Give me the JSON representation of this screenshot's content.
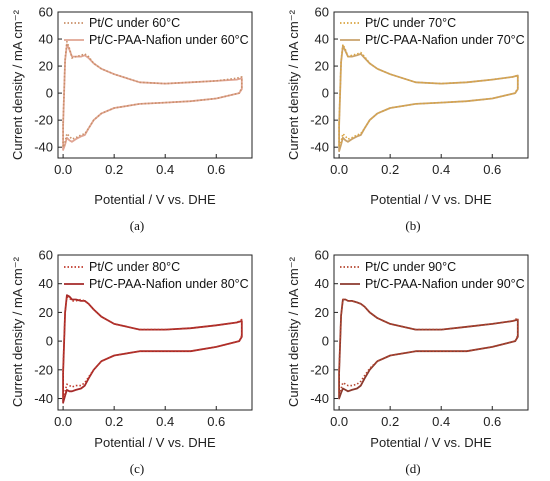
{
  "chart_data": [
    {
      "panel": "(a)",
      "type": "line",
      "xlabel": "Potential / V vs. DHE",
      "ylabel": "Current density / mA cm⁻²",
      "xlim": [
        -0.02,
        0.74
      ],
      "ylim": [
        -48,
        60
      ],
      "xticks": [
        "0.0",
        "0.2",
        "0.4",
        "0.6"
      ],
      "xtick_values": [
        0.0,
        0.2,
        0.4,
        0.6
      ],
      "yticks": [
        "-40",
        "-20",
        "0",
        "20",
        "40",
        "60"
      ],
      "ytick_values": [
        -40,
        -20,
        0,
        20,
        40,
        60
      ],
      "legend_position": "top-left",
      "series": [
        {
          "name": "Pt/C under 60°C",
          "style": "dotted",
          "color": "#c98f67",
          "x": [
            0.0,
            0.008,
            0.015,
            0.025,
            0.035,
            0.05,
            0.07,
            0.085,
            0.1,
            0.12,
            0.15,
            0.2,
            0.3,
            0.4,
            0.5,
            0.6,
            0.68,
            0.7,
            0.7,
            0.69,
            0.6,
            0.5,
            0.4,
            0.3,
            0.2,
            0.15,
            0.12,
            0.1,
            0.085,
            0.07,
            0.05,
            0.035,
            0.025,
            0.015,
            0.008,
            0.0,
            0.0
          ],
          "y": [
            -22,
            25,
            38,
            33,
            26,
            27,
            28,
            29,
            27,
            22,
            18,
            14,
            8,
            7,
            8,
            9,
            11,
            12,
            4,
            0,
            -4,
            -6,
            -7,
            -8,
            -11,
            -15,
            -20,
            -26,
            -30,
            -31,
            -33,
            -34,
            -32,
            -30,
            -36,
            -40,
            -22
          ]
        },
        {
          "name": "Pt/C-PAA-Nafion under 60°C",
          "style": "solid",
          "color": "#e0a493",
          "x": [
            0.0,
            0.008,
            0.015,
            0.025,
            0.035,
            0.05,
            0.07,
            0.085,
            0.1,
            0.12,
            0.15,
            0.2,
            0.3,
            0.4,
            0.5,
            0.6,
            0.68,
            0.7,
            0.7,
            0.69,
            0.6,
            0.5,
            0.4,
            0.3,
            0.2,
            0.15,
            0.12,
            0.1,
            0.085,
            0.07,
            0.05,
            0.035,
            0.025,
            0.015,
            0.008,
            0.0,
            0.0
          ],
          "y": [
            -24,
            24,
            36,
            32,
            27,
            27,
            27,
            28,
            26,
            22,
            18,
            14,
            8,
            7,
            8,
            9,
            10,
            11,
            3,
            0,
            -4,
            -6,
            -7,
            -8,
            -11,
            -15,
            -20,
            -26,
            -31,
            -32,
            -34,
            -36,
            -35,
            -33,
            -38,
            -42,
            -24
          ]
        }
      ]
    },
    {
      "panel": "(b)",
      "type": "line",
      "xlabel": "Potential / V vs. DHE",
      "ylabel": "Current density / mA cm⁻²",
      "xlim": [
        -0.02,
        0.74
      ],
      "ylim": [
        -48,
        60
      ],
      "xticks": [
        "0.0",
        "0.2",
        "0.4",
        "0.6"
      ],
      "xtick_values": [
        0.0,
        0.2,
        0.4,
        0.6
      ],
      "yticks": [
        "-40",
        "-20",
        "0",
        "20",
        "40",
        "60"
      ],
      "ytick_values": [
        -40,
        -20,
        0,
        20,
        40,
        60
      ],
      "legend_position": "top-left",
      "series": [
        {
          "name": "Pt/C under 70°C",
          "style": "dotted",
          "color": "#d9a441",
          "x": [
            0.0,
            0.008,
            0.015,
            0.025,
            0.035,
            0.05,
            0.07,
            0.085,
            0.1,
            0.12,
            0.15,
            0.2,
            0.3,
            0.4,
            0.5,
            0.6,
            0.68,
            0.7,
            0.7,
            0.69,
            0.6,
            0.5,
            0.4,
            0.3,
            0.2,
            0.15,
            0.12,
            0.1,
            0.085,
            0.07,
            0.05,
            0.035,
            0.025,
            0.015,
            0.008,
            0.0,
            0.0
          ],
          "y": [
            -22,
            24,
            36,
            32,
            27,
            28,
            29,
            30,
            27,
            22,
            18,
            14,
            8,
            7,
            8,
            10,
            12,
            13,
            4,
            0,
            -4,
            -6,
            -7,
            -8,
            -11,
            -15,
            -20,
            -26,
            -30,
            -31,
            -33,
            -34,
            -32,
            -30,
            -36,
            -40,
            -22
          ]
        },
        {
          "name": "Pt/C-PAA-Nafion under 70°C",
          "style": "solid",
          "color": "#c9a26b",
          "x": [
            0.0,
            0.008,
            0.015,
            0.025,
            0.035,
            0.05,
            0.07,
            0.085,
            0.1,
            0.12,
            0.15,
            0.2,
            0.3,
            0.4,
            0.5,
            0.6,
            0.68,
            0.7,
            0.7,
            0.69,
            0.6,
            0.5,
            0.4,
            0.3,
            0.2,
            0.15,
            0.12,
            0.1,
            0.085,
            0.07,
            0.05,
            0.035,
            0.025,
            0.015,
            0.008,
            0.0,
            0.0
          ],
          "y": [
            -24,
            23,
            35,
            31,
            27,
            27,
            28,
            29,
            26,
            22,
            18,
            14,
            8,
            7,
            8,
            10,
            12,
            13,
            3,
            0,
            -4,
            -6,
            -7,
            -8,
            -11,
            -15,
            -20,
            -26,
            -31,
            -32,
            -34,
            -36,
            -35,
            -33,
            -38,
            -43,
            -24
          ]
        }
      ]
    },
    {
      "panel": "(c)",
      "type": "line",
      "xlabel": "Potential / V vs. DHE",
      "ylabel": "Current density / mA cm⁻²",
      "xlim": [
        -0.02,
        0.74
      ],
      "ylim": [
        -48,
        60
      ],
      "xticks": [
        "0.0",
        "0.2",
        "0.4",
        "0.6"
      ],
      "xtick_values": [
        0.0,
        0.2,
        0.4,
        0.6
      ],
      "yticks": [
        "-40",
        "-20",
        "0",
        "20",
        "40",
        "60"
      ],
      "ytick_values": [
        -40,
        -20,
        0,
        20,
        40,
        60
      ],
      "legend_position": "top-left",
      "series": [
        {
          "name": "Pt/C under 80°C",
          "style": "dotted",
          "color": "#c0392b",
          "x": [
            0.0,
            0.008,
            0.015,
            0.025,
            0.035,
            0.05,
            0.07,
            0.085,
            0.1,
            0.12,
            0.15,
            0.2,
            0.3,
            0.4,
            0.5,
            0.6,
            0.68,
            0.7,
            0.7,
            0.69,
            0.6,
            0.5,
            0.4,
            0.3,
            0.2,
            0.15,
            0.12,
            0.1,
            0.085,
            0.07,
            0.05,
            0.035,
            0.025,
            0.015,
            0.008,
            0.0,
            0.0
          ],
          "y": [
            -20,
            20,
            31,
            30,
            28,
            28,
            29,
            28,
            26,
            22,
            17,
            12,
            8,
            8,
            9,
            11,
            13,
            15,
            4,
            0,
            -4,
            -7,
            -7,
            -7,
            -10,
            -14,
            -20,
            -25,
            -29,
            -31,
            -31,
            -32,
            -31,
            -30,
            -35,
            -40,
            -20
          ]
        },
        {
          "name": "Pt/C-PAA-Nafion under 80°C",
          "style": "solid",
          "color": "#a52a2a",
          "x": [
            0.0,
            0.008,
            0.015,
            0.025,
            0.035,
            0.05,
            0.07,
            0.085,
            0.1,
            0.12,
            0.15,
            0.2,
            0.3,
            0.4,
            0.5,
            0.6,
            0.68,
            0.7,
            0.7,
            0.69,
            0.6,
            0.5,
            0.4,
            0.3,
            0.2,
            0.15,
            0.12,
            0.1,
            0.085,
            0.07,
            0.05,
            0.035,
            0.025,
            0.015,
            0.008,
            0.0,
            0.0
          ],
          "y": [
            -22,
            20,
            32,
            31,
            29,
            29,
            28,
            28,
            26,
            22,
            17,
            12,
            8,
            8,
            9,
            11,
            13,
            14,
            3,
            0,
            -4,
            -7,
            -7,
            -7,
            -10,
            -14,
            -20,
            -26,
            -31,
            -33,
            -34,
            -35,
            -35,
            -34,
            -38,
            -43,
            -22
          ]
        }
      ]
    },
    {
      "panel": "(d)",
      "type": "line",
      "xlabel": "Potential / V vs. DHE",
      "ylabel": "Current density / mA cm⁻²",
      "xlim": [
        -0.02,
        0.74
      ],
      "ylim": [
        -48,
        60
      ],
      "xticks": [
        "0.0",
        "0.2",
        "0.4",
        "0.6"
      ],
      "xtick_values": [
        0.0,
        0.2,
        0.4,
        0.6
      ],
      "yticks": [
        "-40",
        "-20",
        "0",
        "20",
        "40",
        "60"
      ],
      "ytick_values": [
        -40,
        -20,
        0,
        20,
        40,
        60
      ],
      "legend_position": "top-left",
      "series": [
        {
          "name": "Pt/C under 90°C",
          "style": "dotted",
          "color": "#b5452f",
          "x": [
            0.0,
            0.008,
            0.015,
            0.025,
            0.035,
            0.05,
            0.07,
            0.085,
            0.1,
            0.12,
            0.15,
            0.2,
            0.3,
            0.4,
            0.5,
            0.6,
            0.68,
            0.7,
            0.7,
            0.69,
            0.6,
            0.5,
            0.4,
            0.3,
            0.2,
            0.15,
            0.12,
            0.1,
            0.085,
            0.07,
            0.05,
            0.035,
            0.025,
            0.015,
            0.008,
            0.0,
            0.0
          ],
          "y": [
            -20,
            18,
            29,
            29,
            28,
            28,
            27,
            26,
            24,
            20,
            16,
            12,
            8,
            8,
            10,
            12,
            14,
            16,
            4,
            0,
            -4,
            -7,
            -7,
            -7,
            -10,
            -14,
            -19,
            -24,
            -28,
            -30,
            -31,
            -31,
            -30,
            -29,
            -33,
            -37,
            -20
          ]
        },
        {
          "name": "Pt/C-PAA-Nafion under 90°C",
          "style": "solid",
          "color": "#8b3a2e",
          "x": [
            0.0,
            0.008,
            0.015,
            0.025,
            0.035,
            0.05,
            0.07,
            0.085,
            0.1,
            0.12,
            0.15,
            0.2,
            0.3,
            0.4,
            0.5,
            0.6,
            0.68,
            0.7,
            0.7,
            0.69,
            0.6,
            0.5,
            0.4,
            0.3,
            0.2,
            0.15,
            0.12,
            0.1,
            0.085,
            0.07,
            0.05,
            0.035,
            0.025,
            0.015,
            0.008,
            0.0,
            0.0
          ],
          "y": [
            -22,
            18,
            29,
            29,
            28,
            28,
            27,
            26,
            24,
            20,
            16,
            12,
            8,
            8,
            10,
            12,
            14,
            15,
            3,
            0,
            -4,
            -7,
            -7,
            -7,
            -10,
            -14,
            -20,
            -26,
            -31,
            -33,
            -34,
            -35,
            -34,
            -33,
            -36,
            -40,
            -22
          ]
        }
      ]
    }
  ]
}
